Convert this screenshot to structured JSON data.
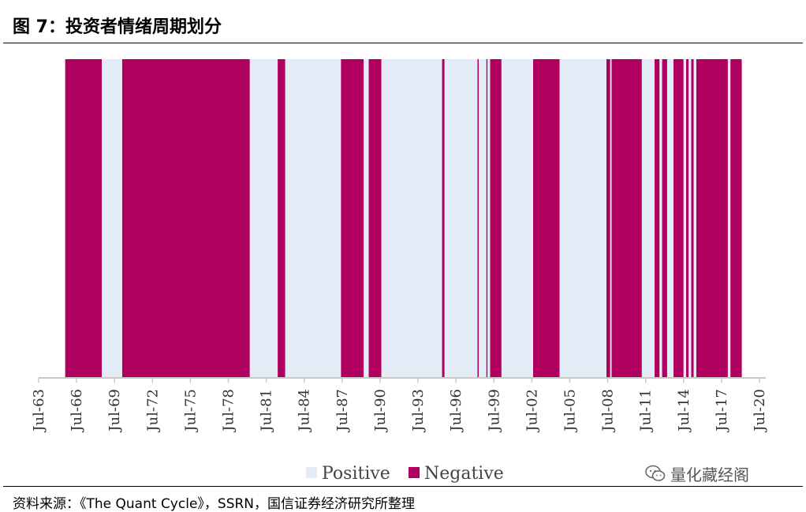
{
  "header": {
    "title": "图 7：投资者情绪周期划分"
  },
  "footer": {
    "source": "资料来源：《The Quant Cycle》，SSRN，国信证券经济研究所整理"
  },
  "watermark": {
    "text": "量化藏经阁",
    "icon": "wechat-icon"
  },
  "chart_data": {
    "type": "bar",
    "title": "",
    "xlabel": "",
    "ylabel": "",
    "x_range": [
      1963.5,
      2020.5
    ],
    "ticks": [
      "Jul-63",
      "Jul-66",
      "Jul-69",
      "Jul-72",
      "Jul-75",
      "Jul-78",
      "Jul-81",
      "Jul-84",
      "Jul-87",
      "Jul-90",
      "Jul-93",
      "Jul-96",
      "Jul-99",
      "Jul-02",
      "Jul-05",
      "Jul-08",
      "Jul-11",
      "Jul-14",
      "Jul-17",
      "Jul-20"
    ],
    "tick_values": [
      1963.5,
      1966.5,
      1969.5,
      1972.5,
      1975.5,
      1978.5,
      1981.5,
      1984.5,
      1987.5,
      1990.5,
      1993.5,
      1996.5,
      1999.5,
      2002.5,
      2005.5,
      2008.5,
      2011.5,
      2014.5,
      2017.5,
      2020.5
    ],
    "legend": {
      "placement": "bottom-center",
      "entries": [
        {
          "name": "Positive",
          "color": "#e4ecf7"
        },
        {
          "name": "Negative",
          "color": "#b0005f"
        }
      ]
    },
    "colors": {
      "positive": "#e4ecf7",
      "negative": "#b0005f",
      "axis": "#c8c8c8"
    },
    "series": [
      {
        "name": "Negative",
        "intervals": [
          [
            1965.6,
            1968.5
          ],
          [
            1970.1,
            1980.2
          ],
          [
            1982.4,
            1983.0
          ],
          [
            1987.4,
            1989.2
          ],
          [
            1989.6,
            1990.6
          ],
          [
            1995.4,
            1995.6
          ],
          [
            1998.2,
            1998.3
          ],
          [
            1998.9,
            1999.0
          ],
          [
            1999.2,
            2000.1
          ],
          [
            2002.6,
            2004.7
          ],
          [
            2008.4,
            2008.7
          ],
          [
            2008.8,
            2011.2
          ],
          [
            2012.2,
            2012.6
          ],
          [
            2012.8,
            2013.2
          ],
          [
            2013.7,
            2014.5
          ],
          [
            2014.7,
            2014.9
          ],
          [
            2015.1,
            2015.3
          ],
          [
            2015.5,
            2018.0
          ],
          [
            2018.2,
            2019.1
          ]
        ]
      },
      {
        "name": "Positive",
        "intervals": [
          [
            1968.5,
            1970.1
          ],
          [
            1980.2,
            1982.4
          ],
          [
            1983.0,
            1987.4
          ],
          [
            1989.2,
            1989.6
          ],
          [
            1990.6,
            1995.4
          ],
          [
            1995.6,
            1998.2
          ],
          [
            1998.3,
            1998.9
          ],
          [
            1999.0,
            1999.2
          ],
          [
            2000.1,
            2002.6
          ],
          [
            2004.7,
            2008.4
          ],
          [
            2008.7,
            2008.8
          ],
          [
            2011.2,
            2012.2
          ],
          [
            2012.6,
            2012.8
          ],
          [
            2013.2,
            2013.7
          ],
          [
            2014.5,
            2014.7
          ],
          [
            2014.9,
            2015.1
          ],
          [
            2015.3,
            2015.5
          ],
          [
            2018.0,
            2018.2
          ]
        ]
      }
    ]
  }
}
